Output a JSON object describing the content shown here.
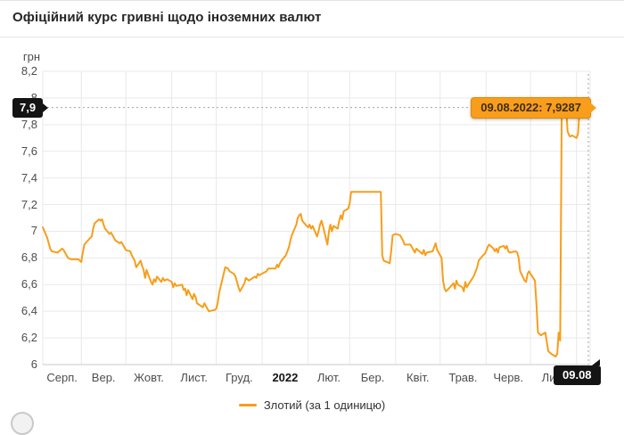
{
  "header": {
    "title": "Офіційний курс гривні щодо іноземних валют"
  },
  "y_axis": {
    "unit": "грн",
    "ticks": [
      {
        "label": "8,2",
        "value": 8.2
      },
      {
        "label": "8",
        "value": 8.0
      },
      {
        "label": "7,8",
        "value": 7.8
      },
      {
        "label": "7,6",
        "value": 7.6
      },
      {
        "label": "7,4",
        "value": 7.4
      },
      {
        "label": "7,2",
        "value": 7.2
      },
      {
        "label": "7",
        "value": 7.0
      },
      {
        "label": "6,8",
        "value": 6.8
      },
      {
        "label": "6,6",
        "value": 6.6
      },
      {
        "label": "6,4",
        "value": 6.4
      },
      {
        "label": "6,2",
        "value": 6.2
      },
      {
        "label": "6",
        "value": 6.0
      }
    ]
  },
  "x_axis": {
    "gridline_dates": [
      "2021-09-01",
      "2021-10-01",
      "2021-11-01",
      "2021-12-01",
      "2022-01-01",
      "2022-02-01",
      "2022-03-01",
      "2022-04-01",
      "2022-05-01",
      "2022-06-01",
      "2022-07-01",
      "2022-08-01"
    ],
    "month_labels": [
      {
        "label": "Серп.",
        "bold": false
      },
      {
        "label": "Вер.",
        "bold": false
      },
      {
        "label": "Жовт.",
        "bold": false
      },
      {
        "label": "Лист.",
        "bold": false
      },
      {
        "label": "Груд.",
        "bold": false
      },
      {
        "label": "2022",
        "bold": true
      },
      {
        "label": "Лют.",
        "bold": false
      },
      {
        "label": "Бер.",
        "bold": false
      },
      {
        "label": "Квіт.",
        "bold": false
      },
      {
        "label": "Трав.",
        "bold": false
      },
      {
        "label": "Черв.",
        "bold": false
      },
      {
        "label": "Лип.",
        "bold": false
      }
    ]
  },
  "annotations": {
    "left_tag": "7,9",
    "bottom_tag": "09.08",
    "tooltip": "09.08.2022: 7,9287"
  },
  "legend": {
    "label": "Злотий (за 1 одиницю)"
  },
  "colors": {
    "line": "#f79e1b",
    "tooltip_bg": "#f99d1d",
    "tooltip_border": "#e08b00",
    "tag_bg": "#141414",
    "grid": "#e9e9e9",
    "axis": "#c9c9c9",
    "dashed": "#a3a3a3"
  },
  "chart_data": {
    "type": "line",
    "title": "Офіційний курс гривні щодо іноземних валют",
    "ylabel": "грн",
    "ylim": [
      6,
      8.2
    ],
    "grid": true,
    "legend_position": "bottom-center",
    "x_range": [
      "2021-08-06",
      "2022-08-09"
    ],
    "highlight": {
      "date": "2022-08-09",
      "value": 7.9287,
      "label": "09.08.2022: 7,9287"
    },
    "series": [
      {
        "name": "Злотий (за 1 одиницю)",
        "points": [
          [
            "2021-08-06",
            7.03
          ],
          [
            "2021-08-09",
            6.95
          ],
          [
            "2021-08-11",
            6.87
          ],
          [
            "2021-08-12",
            6.85
          ],
          [
            "2021-08-16",
            6.84
          ],
          [
            "2021-08-18",
            6.86
          ],
          [
            "2021-08-19",
            6.87
          ],
          [
            "2021-08-20",
            6.86
          ],
          [
            "2021-08-23",
            6.8
          ],
          [
            "2021-08-25",
            6.79
          ],
          [
            "2021-08-30",
            6.79
          ],
          [
            "2021-08-31",
            6.78
          ],
          [
            "2021-09-01",
            6.77
          ],
          [
            "2021-09-02",
            6.84
          ],
          [
            "2021-09-03",
            6.9
          ],
          [
            "2021-09-07",
            6.95
          ],
          [
            "2021-09-08",
            6.96
          ],
          [
            "2021-09-09",
            7.02
          ],
          [
            "2021-09-10",
            7.06
          ],
          [
            "2021-09-13",
            7.09
          ],
          [
            "2021-09-14",
            7.08
          ],
          [
            "2021-09-15",
            7.09
          ],
          [
            "2021-09-16",
            7.05
          ],
          [
            "2021-09-17",
            7.02
          ],
          [
            "2021-09-20",
            6.98
          ],
          [
            "2021-09-21",
            6.99
          ],
          [
            "2021-09-22",
            6.97
          ],
          [
            "2021-09-24",
            6.93
          ],
          [
            "2021-09-27",
            6.91
          ],
          [
            "2021-09-28",
            6.92
          ],
          [
            "2021-09-30",
            6.88
          ],
          [
            "2021-10-01",
            6.86
          ],
          [
            "2021-10-04",
            6.85
          ],
          [
            "2021-10-05",
            6.82
          ],
          [
            "2021-10-06",
            6.8
          ],
          [
            "2021-10-07",
            6.78
          ],
          [
            "2021-10-08",
            6.73
          ],
          [
            "2021-10-11",
            6.78
          ],
          [
            "2021-10-12",
            6.74
          ],
          [
            "2021-10-13",
            6.71
          ],
          [
            "2021-10-14",
            6.65
          ],
          [
            "2021-10-15",
            6.71
          ],
          [
            "2021-10-18",
            6.62
          ],
          [
            "2021-10-19",
            6.6
          ],
          [
            "2021-10-20",
            6.64
          ],
          [
            "2021-10-21",
            6.62
          ],
          [
            "2021-10-22",
            6.66
          ],
          [
            "2021-10-25",
            6.62
          ],
          [
            "2021-10-26",
            6.65
          ],
          [
            "2021-10-27",
            6.63
          ],
          [
            "2021-10-29",
            6.64
          ],
          [
            "2021-11-01",
            6.62
          ],
          [
            "2021-11-02",
            6.58
          ],
          [
            "2021-11-03",
            6.61
          ],
          [
            "2021-11-04",
            6.59
          ],
          [
            "2021-11-08",
            6.6
          ],
          [
            "2021-11-09",
            6.56
          ],
          [
            "2021-11-10",
            6.57
          ],
          [
            "2021-11-11",
            6.52
          ],
          [
            "2021-11-12",
            6.56
          ],
          [
            "2021-11-15",
            6.49
          ],
          [
            "2021-11-16",
            6.53
          ],
          [
            "2021-11-17",
            6.51
          ],
          [
            "2021-11-18",
            6.46
          ],
          [
            "2021-11-22",
            6.43
          ],
          [
            "2021-11-23",
            6.46
          ],
          [
            "2021-11-24",
            6.44
          ],
          [
            "2021-11-25",
            6.42
          ],
          [
            "2021-11-26",
            6.4
          ],
          [
            "2021-11-30",
            6.41
          ],
          [
            "2021-12-01",
            6.42
          ],
          [
            "2021-12-02",
            6.46
          ],
          [
            "2021-12-03",
            6.54
          ],
          [
            "2021-12-06",
            6.68
          ],
          [
            "2021-12-07",
            6.73
          ],
          [
            "2021-12-09",
            6.72
          ],
          [
            "2021-12-10",
            6.7
          ],
          [
            "2021-12-13",
            6.68
          ],
          [
            "2021-12-14",
            6.66
          ],
          [
            "2021-12-15",
            6.62
          ],
          [
            "2021-12-16",
            6.58
          ],
          [
            "2021-12-17",
            6.55
          ],
          [
            "2021-12-20",
            6.61
          ],
          [
            "2021-12-21",
            6.65
          ],
          [
            "2021-12-22",
            6.64
          ],
          [
            "2021-12-23",
            6.63
          ],
          [
            "2021-12-27",
            6.66
          ],
          [
            "2021-12-28",
            6.65
          ],
          [
            "2021-12-29",
            6.68
          ],
          [
            "2021-12-30",
            6.67
          ],
          [
            "2022-01-04",
            6.7
          ],
          [
            "2022-01-05",
            6.72
          ],
          [
            "2022-01-10",
            6.72
          ],
          [
            "2022-01-11",
            6.75
          ],
          [
            "2022-01-12",
            6.73
          ],
          [
            "2022-01-13",
            6.76
          ],
          [
            "2022-01-14",
            6.78
          ],
          [
            "2022-01-17",
            6.82
          ],
          [
            "2022-01-18",
            6.85
          ],
          [
            "2022-01-19",
            6.88
          ],
          [
            "2022-01-20",
            6.93
          ],
          [
            "2022-01-21",
            6.97
          ],
          [
            "2022-01-24",
            7.05
          ],
          [
            "2022-01-25",
            7.1
          ],
          [
            "2022-01-26",
            7.12
          ],
          [
            "2022-01-27",
            7.13
          ],
          [
            "2022-01-28",
            7.08
          ],
          [
            "2022-01-31",
            7.04
          ],
          [
            "2022-02-01",
            7.03
          ],
          [
            "2022-02-02",
            7.05
          ],
          [
            "2022-02-03",
            7.02
          ],
          [
            "2022-02-04",
            7.04
          ],
          [
            "2022-02-07",
            6.96
          ],
          [
            "2022-02-08",
            7.0
          ],
          [
            "2022-02-09",
            7.05
          ],
          [
            "2022-02-10",
            7.08
          ],
          [
            "2022-02-11",
            7.04
          ],
          [
            "2022-02-14",
            6.9
          ],
          [
            "2022-02-15",
            7.0
          ],
          [
            "2022-02-16",
            7.05
          ],
          [
            "2022-02-17",
            7.0
          ],
          [
            "2022-02-18",
            7.04
          ],
          [
            "2022-02-21",
            7.02
          ],
          [
            "2022-02-22",
            7.08
          ],
          [
            "2022-02-23",
            7.12
          ],
          [
            "2022-02-24",
            7.09
          ],
          [
            "2022-02-25",
            7.15
          ],
          [
            "2022-02-28",
            7.17
          ],
          [
            "2022-03-01",
            7.21
          ],
          [
            "2022-03-02",
            7.2954
          ],
          [
            "2022-03-22",
            7.2954
          ],
          [
            "2022-03-23",
            6.82
          ],
          [
            "2022-03-24",
            6.78
          ],
          [
            "2022-03-28",
            6.76
          ],
          [
            "2022-03-29",
            6.85
          ],
          [
            "2022-03-30",
            6.97
          ],
          [
            "2022-04-01",
            6.98
          ],
          [
            "2022-04-04",
            6.97
          ],
          [
            "2022-04-05",
            6.95
          ],
          [
            "2022-04-06",
            6.93
          ],
          [
            "2022-04-07",
            6.9
          ],
          [
            "2022-04-11",
            6.9
          ],
          [
            "2022-04-12",
            6.88
          ],
          [
            "2022-04-13",
            6.86
          ],
          [
            "2022-04-14",
            6.84
          ],
          [
            "2022-04-15",
            6.87
          ],
          [
            "2022-04-19",
            6.83
          ],
          [
            "2022-04-20",
            6.86
          ],
          [
            "2022-04-21",
            6.82
          ],
          [
            "2022-04-22",
            6.84
          ],
          [
            "2022-04-26",
            6.85
          ],
          [
            "2022-04-27",
            6.88
          ],
          [
            "2022-04-28",
            6.91
          ],
          [
            "2022-04-29",
            6.86
          ],
          [
            "2022-05-02",
            6.8
          ],
          [
            "2022-05-03",
            6.63
          ],
          [
            "2022-05-04",
            6.57
          ],
          [
            "2022-05-05",
            6.55
          ],
          [
            "2022-05-06",
            6.56
          ],
          [
            "2022-05-10",
            6.61
          ],
          [
            "2022-05-11",
            6.57
          ],
          [
            "2022-05-12",
            6.63
          ],
          [
            "2022-05-13",
            6.6
          ],
          [
            "2022-05-16",
            6.58
          ],
          [
            "2022-05-17",
            6.55
          ],
          [
            "2022-05-18",
            6.62
          ],
          [
            "2022-05-19",
            6.58
          ],
          [
            "2022-05-20",
            6.6
          ],
          [
            "2022-05-23",
            6.65
          ],
          [
            "2022-05-24",
            6.67
          ],
          [
            "2022-05-25",
            6.7
          ],
          [
            "2022-05-26",
            6.73
          ],
          [
            "2022-05-27",
            6.78
          ],
          [
            "2022-05-30",
            6.82
          ],
          [
            "2022-05-31",
            6.83
          ],
          [
            "2022-06-01",
            6.85
          ],
          [
            "2022-06-02",
            6.88
          ],
          [
            "2022-06-03",
            6.9
          ],
          [
            "2022-06-06",
            6.87
          ],
          [
            "2022-06-07",
            6.85
          ],
          [
            "2022-06-08",
            6.87
          ],
          [
            "2022-06-09",
            6.84
          ],
          [
            "2022-06-10",
            6.88
          ],
          [
            "2022-06-13",
            6.89
          ],
          [
            "2022-06-14",
            6.87
          ],
          [
            "2022-06-15",
            6.89
          ],
          [
            "2022-06-16",
            6.85
          ],
          [
            "2022-06-17",
            6.84
          ],
          [
            "2022-06-21",
            6.85
          ],
          [
            "2022-06-22",
            6.84
          ],
          [
            "2022-06-23",
            6.8
          ],
          [
            "2022-06-24",
            6.7
          ],
          [
            "2022-06-27",
            6.63
          ],
          [
            "2022-06-28",
            6.62
          ],
          [
            "2022-06-29",
            6.68
          ],
          [
            "2022-06-30",
            6.7
          ],
          [
            "2022-07-01",
            6.68
          ],
          [
            "2022-07-04",
            6.63
          ],
          [
            "2022-07-05",
            6.45
          ],
          [
            "2022-07-06",
            6.24
          ],
          [
            "2022-07-07",
            6.23
          ],
          [
            "2022-07-08",
            6.22
          ],
          [
            "2022-07-11",
            6.24
          ],
          [
            "2022-07-12",
            6.17
          ],
          [
            "2022-07-13",
            6.1
          ],
          [
            "2022-07-14",
            6.09
          ],
          [
            "2022-07-15",
            6.08
          ],
          [
            "2022-07-18",
            6.06
          ],
          [
            "2022-07-19",
            6.08
          ],
          [
            "2022-07-20",
            6.24
          ],
          [
            "2022-07-21",
            6.18
          ],
          [
            "2022-07-22",
            7.88
          ],
          [
            "2022-07-25",
            7.93
          ],
          [
            "2022-07-26",
            7.75
          ],
          [
            "2022-07-27",
            7.72
          ],
          [
            "2022-07-28",
            7.71
          ],
          [
            "2022-07-29",
            7.72
          ],
          [
            "2022-08-01",
            7.7
          ],
          [
            "2022-08-02",
            7.73
          ],
          [
            "2022-08-03",
            7.9
          ],
          [
            "2022-08-04",
            7.93
          ],
          [
            "2022-08-05",
            7.91
          ],
          [
            "2022-08-08",
            7.92
          ],
          [
            "2022-08-09",
            7.9287
          ]
        ]
      }
    ]
  }
}
